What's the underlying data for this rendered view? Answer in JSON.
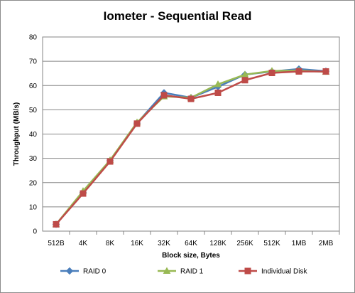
{
  "chart_data": {
    "type": "line",
    "title": "Iometer - Sequential Read",
    "xlabel": "Block size, Bytes",
    "ylabel": "Throughput  (MB/s)",
    "ylim": [
      0,
      80
    ],
    "yticks": [
      0,
      10,
      20,
      30,
      40,
      50,
      60,
      70,
      80
    ],
    "grid": true,
    "legend_position": "bottom",
    "categories": [
      "512B",
      "4K",
      "8K",
      "16K",
      "32K",
      "64K",
      "128K",
      "256K",
      "512K",
      "1MB",
      "2MB"
    ],
    "series": [
      {
        "name": "RAID 0",
        "color": "#4a7ebb",
        "marker": "diamond",
        "values": [
          2.8,
          16.0,
          29.0,
          44.5,
          57.0,
          55.0,
          59.5,
          64.5,
          65.8,
          66.8,
          65.9
        ]
      },
      {
        "name": "RAID 1",
        "color": "#98b954",
        "marker": "triangle",
        "values": [
          2.8,
          16.5,
          29.2,
          44.8,
          55.5,
          55.0,
          60.5,
          64.5,
          66.0,
          66.2,
          65.6
        ]
      },
      {
        "name": "Individual Disk",
        "color": "#be4b48",
        "marker": "square",
        "values": [
          2.8,
          15.5,
          28.7,
          44.3,
          56.0,
          54.5,
          57.0,
          62.2,
          65.2,
          65.8,
          65.8
        ]
      }
    ]
  }
}
